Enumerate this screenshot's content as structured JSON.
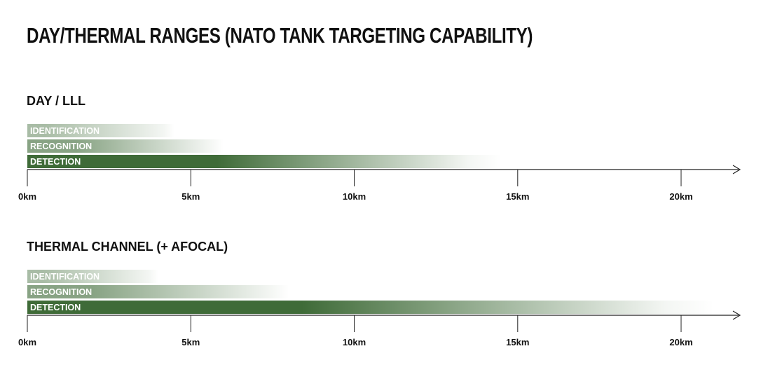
{
  "title": "DAY/THERMAL RANGES (NATO TANK TARGETING CAPABILITY)",
  "colors": {
    "bar": "#3f6b38",
    "axis": "#222222",
    "text": "#111111"
  },
  "chart_data": [
    {
      "type": "bar",
      "orientation": "horizontal",
      "title": "DAY / LLL",
      "categories": [
        "IDENTIFICATION",
        "RECOGNITION",
        "DETECTION"
      ],
      "values": [
        4.5,
        6,
        14.5
      ],
      "xlim": [
        0,
        22
      ],
      "xticks": [
        0,
        5,
        10,
        15,
        20
      ],
      "xtick_labels": [
        "0km",
        "5km",
        "10km",
        "15km",
        "20km"
      ]
    },
    {
      "type": "bar",
      "orientation": "horizontal",
      "title": "THERMAL CHANNEL (+ AFOCAL)",
      "categories": [
        "IDENTIFICATION",
        "RECOGNITION",
        "DETECTION"
      ],
      "values": [
        4,
        8,
        21
      ],
      "xlim": [
        0,
        22
      ],
      "xticks": [
        0,
        5,
        10,
        15,
        20
      ],
      "xtick_labels": [
        "0km",
        "5km",
        "10km",
        "15km",
        "20km"
      ]
    }
  ]
}
